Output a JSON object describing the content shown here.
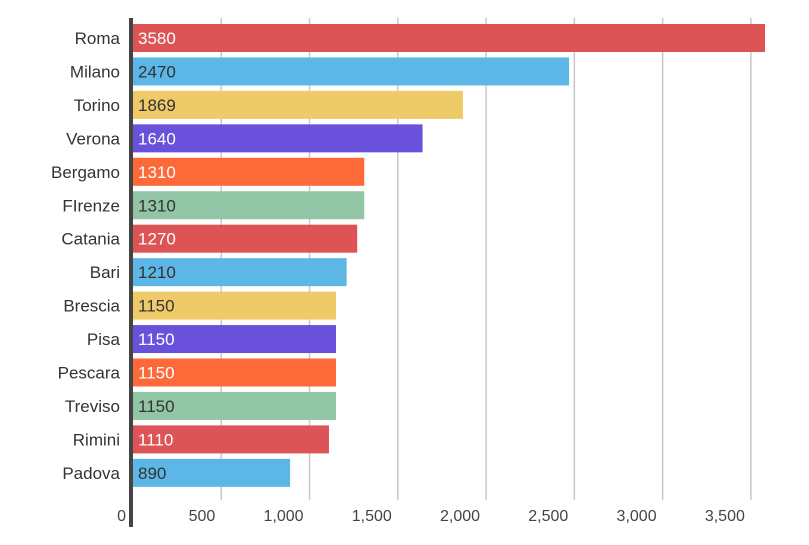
{
  "chart_data": {
    "type": "bar",
    "orientation": "horizontal",
    "title": "",
    "xlabel": "",
    "ylabel": "",
    "xlim": [
      0,
      3580
    ],
    "grid": true,
    "categories": [
      "Roma",
      "Milano",
      "Torino",
      "Verona",
      "Bergamo",
      "FIrenze",
      "Catania",
      "Bari",
      "Brescia",
      "Pisa",
      "Pescara",
      "Treviso",
      "Rimini",
      "Padova"
    ],
    "values": [
      3580,
      2470,
      1869,
      1640,
      1310,
      1310,
      1270,
      1210,
      1150,
      1150,
      1150,
      1150,
      1110,
      890
    ],
    "value_labels": [
      "3580",
      "2470",
      "1869",
      "1640",
      "1310",
      "1310",
      "1270",
      "1210",
      "1150",
      "1150",
      "1150",
      "1150",
      "1110",
      "890"
    ],
    "ticks": [
      0,
      500,
      1000,
      1500,
      2000,
      2500,
      3000,
      3500
    ],
    "tick_labels": [
      "0",
      "500",
      "1,000",
      "1,500",
      "2,000",
      "2,500",
      "3,000",
      "3,500"
    ],
    "bar_colors": [
      "#dc5456",
      "#5db7e6",
      "#eecb68",
      "#6951dc",
      "#fe6939",
      "#92c5a5"
    ],
    "label_colors": [
      "#ffffff",
      "#333333",
      "#333333",
      "#ffffff",
      "#ffffff",
      "#333333"
    ],
    "axis_color": "#444444",
    "grid_color": "#c8c8c8"
  }
}
